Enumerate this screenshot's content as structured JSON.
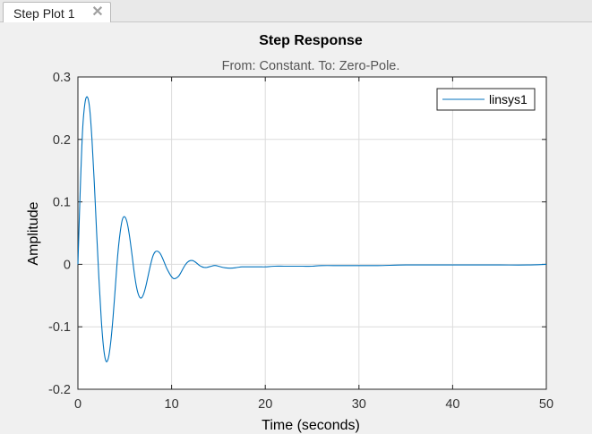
{
  "tab": {
    "label": "Step Plot 1",
    "close_icon": "close-icon"
  },
  "chart_data": {
    "type": "line",
    "title": "Step Response",
    "subtitle": "From: Constant.  To: Zero-Pole.",
    "xlabel": "Time (seconds)",
    "ylabel": "Amplitude",
    "xlim": [
      0,
      50
    ],
    "ylim": [
      -0.2,
      0.3
    ],
    "xticks": [
      "0",
      "10",
      "20",
      "30",
      "40",
      "50"
    ],
    "yticks": [
      "0.3",
      "0.2",
      "0.1",
      "0",
      "-0.1",
      "-0.2"
    ],
    "grid": true,
    "legend_position": "top-right",
    "series": [
      {
        "name": "linsys1",
        "color": "#0072bd",
        "x": [
          0,
          0.25,
          0.5,
          0.75,
          1.0,
          1.25,
          1.5,
          1.75,
          2.0,
          2.25,
          2.5,
          2.75,
          3.0,
          3.25,
          3.5,
          3.75,
          4.0,
          4.25,
          4.5,
          4.75,
          5.0,
          5.25,
          5.5,
          5.75,
          6.0,
          6.25,
          6.5,
          6.75,
          7.0,
          7.25,
          7.5,
          7.75,
          8.0,
          8.25,
          8.5,
          8.75,
          9.0,
          9.25,
          9.5,
          9.75,
          10.0,
          10.25,
          10.5,
          10.75,
          11.0,
          11.25,
          11.5,
          11.75,
          12.0,
          12.25,
          12.5,
          12.75,
          13.0,
          13.25,
          13.5,
          13.75,
          14.0,
          14.25,
          14.5,
          14.75,
          15.0,
          15.5,
          16.0,
          16.5,
          17.0,
          17.5,
          18.0,
          18.5,
          19.0,
          19.5,
          20.0,
          21.0,
          22.0,
          23.0,
          24.0,
          25.0,
          26.0,
          28.0,
          30.0,
          32.0,
          35.0,
          38.0,
          40.0,
          42.0,
          45.0,
          48.0,
          50.0
        ],
        "y": [
          0,
          0.12,
          0.215,
          0.258,
          0.268,
          0.25,
          0.2,
          0.13,
          0.05,
          -0.025,
          -0.09,
          -0.135,
          -0.155,
          -0.15,
          -0.125,
          -0.085,
          -0.035,
          0.015,
          0.05,
          0.072,
          0.076,
          0.067,
          0.046,
          0.018,
          -0.012,
          -0.036,
          -0.05,
          -0.054,
          -0.048,
          -0.035,
          -0.018,
          -0.001,
          0.013,
          0.02,
          0.021,
          0.018,
          0.011,
          0.002,
          -0.007,
          -0.014,
          -0.02,
          -0.023,
          -0.022,
          -0.019,
          -0.013,
          -0.006,
          0.0,
          0.004,
          0.006,
          0.006,
          0.004,
          0.001,
          -0.002,
          -0.004,
          -0.005,
          -0.005,
          -0.004,
          -0.003,
          -0.002,
          -0.002,
          -0.003,
          -0.005,
          -0.006,
          -0.006,
          -0.005,
          -0.004,
          -0.004,
          -0.004,
          -0.004,
          -0.004,
          -0.004,
          -0.003,
          -0.003,
          -0.003,
          -0.003,
          -0.003,
          -0.002,
          -0.002,
          -0.002,
          -0.002,
          -0.001,
          -0.001,
          -0.001,
          -0.001,
          -0.001,
          -0.001,
          0.0
        ]
      }
    ]
  }
}
